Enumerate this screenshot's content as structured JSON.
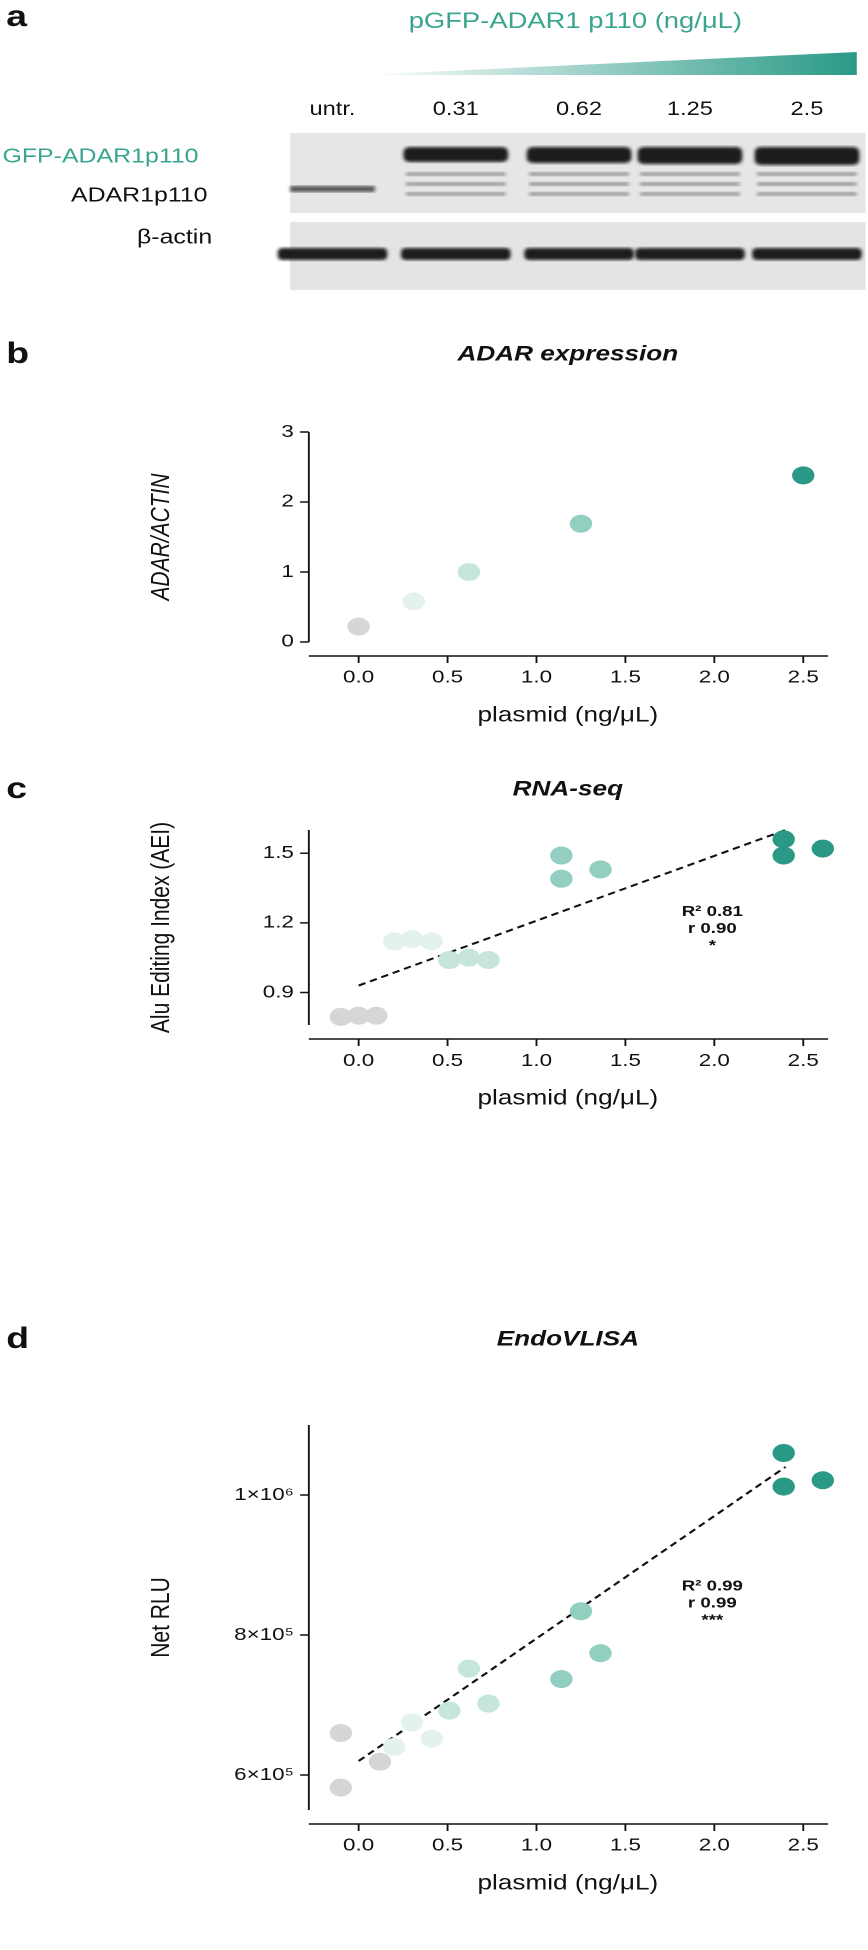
{
  "panel_a": {
    "letter": "a",
    "title": "pGFP-ADAR1 p110 (ng/μL)",
    "lanes": [
      "untr.",
      "0.31",
      "0.62",
      "1.25",
      "2.5"
    ],
    "band_labels": [
      "GFP-ADAR1p110",
      "ADAR1p110",
      "β-actin"
    ]
  },
  "chart_data": [
    {
      "type": "scatter",
      "letter": "b",
      "title": "ADAR expression",
      "x_label": "plasmid (ng/μL)",
      "y_label": "ADAR/ACTIN",
      "x": [
        0,
        0.31,
        0.62,
        1.25,
        2.5
      ],
      "values": [
        0.22,
        0.58,
        1.0,
        1.69,
        2.38
      ],
      "colors": [
        "#d6d6d6",
        "#e4f2ef",
        "#c5e5dd",
        "#93cfc1",
        "#2a9a86"
      ],
      "xlim": [
        -0.28,
        2.64
      ],
      "xticks": [
        {
          "value": 0,
          "label": "0.0"
        },
        {
          "value": 0.5,
          "label": "0.5"
        },
        {
          "value": 1,
          "label": "1.0"
        },
        {
          "value": 1.5,
          "label": "1.5"
        },
        {
          "value": 2,
          "label": "2.0"
        },
        {
          "value": 2.5,
          "label": "2.5"
        }
      ],
      "ylim": [
        0,
        3
      ],
      "yticks": [
        0,
        1,
        2,
        3
      ]
    },
    {
      "type": "scatter",
      "letter": "c",
      "title": "RNA-seq",
      "x_label": "plasmid (ng/μL)",
      "y_label": "Alu Editing Index (AEI)",
      "x": [
        -0.1,
        0,
        0.1,
        0.2,
        0.3,
        0.41,
        0.51,
        0.62,
        0.73,
        1.14,
        1.14,
        1.36,
        2.39,
        2.39,
        2.61
      ],
      "values": [
        0.795,
        0.8,
        0.8,
        1.12,
        1.13,
        1.12,
        1.04,
        1.05,
        1.04,
        1.49,
        1.39,
        1.43,
        1.56,
        1.49,
        1.52
      ],
      "colors": [
        "#d6d6d6",
        "#d6d6d6",
        "#d6d6d6",
        "#e4f2ef",
        "#e4f2ef",
        "#e4f2ef",
        "#c5e5dd",
        "#c5e5dd",
        "#c5e5dd",
        "#93cfc1",
        "#93cfc1",
        "#93cfc1",
        "#2a9a86",
        "#2a9a86",
        "#2a9a86"
      ],
      "fit": {
        "x": [
          0,
          2.4
        ],
        "y": [
          0.93,
          1.6
        ]
      },
      "annotations": [
        "R² 0.81",
        "r 0.90",
        "*"
      ],
      "xlim": [
        -0.28,
        2.64
      ],
      "xticks": [
        {
          "value": 0,
          "label": "0.0"
        },
        {
          "value": 0.5,
          "label": "0.5"
        },
        {
          "value": 1,
          "label": "1.0"
        },
        {
          "value": 1.5,
          "label": "1.5"
        },
        {
          "value": 2,
          "label": "2.0"
        },
        {
          "value": 2.5,
          "label": "2.5"
        }
      ],
      "ylim": [
        0.76,
        1.6
      ],
      "yticks": [
        0.9,
        1.2,
        1.5
      ]
    },
    {
      "type": "scatter",
      "letter": "d",
      "title": "EndoVLISA",
      "x_label": "plasmid (ng/μL)",
      "y_label": "Net RLU",
      "x": [
        -0.1,
        -0.1,
        0.12,
        0.2,
        0.3,
        0.41,
        0.51,
        0.62,
        0.73,
        1.14,
        1.25,
        1.36,
        2.39,
        2.39,
        2.61
      ],
      "values": [
        660000,
        582000,
        619000,
        640000,
        675000,
        652000,
        692000,
        752000,
        702000,
        737000,
        834000,
        774000,
        1060000,
        1012000,
        1021000
      ],
      "colors": [
        "#d6d6d6",
        "#d6d6d6",
        "#d6d6d6",
        "#e4f2ef",
        "#e4f2ef",
        "#e4f2ef",
        "#c5e5dd",
        "#c5e5dd",
        "#c5e5dd",
        "#93cfc1",
        "#93cfc1",
        "#93cfc1",
        "#2a9a86",
        "#2a9a86",
        "#2a9a86"
      ],
      "fit": {
        "x": [
          0,
          2.4
        ],
        "y": [
          620000,
          1040000
        ]
      },
      "annotations": [
        "R² 0.99",
        "r 0.99",
        "***"
      ],
      "xlim": [
        -0.28,
        2.64
      ],
      "xticks": [
        {
          "value": 0,
          "label": "0.0"
        },
        {
          "value": 0.5,
          "label": "0.5"
        },
        {
          "value": 1,
          "label": "1.0"
        },
        {
          "value": 1.5,
          "label": "1.5"
        },
        {
          "value": 2,
          "label": "2.0"
        },
        {
          "value": 2.5,
          "label": "2.5"
        }
      ],
      "ylim": [
        550000,
        1100000
      ],
      "yticks": [
        {
          "value": 600000,
          "label": "6×10⁵"
        },
        {
          "value": 800000,
          "label": "8×10⁵"
        },
        {
          "value": 1000000,
          "label": "1×10⁶"
        }
      ]
    }
  ]
}
